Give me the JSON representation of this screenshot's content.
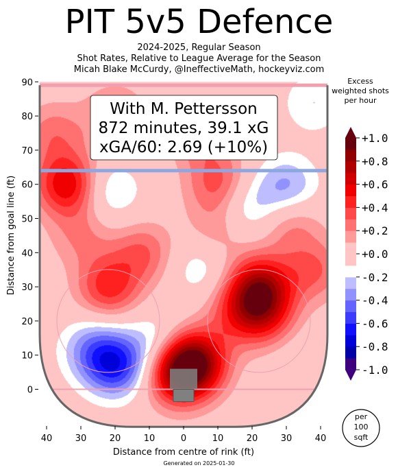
{
  "title": "PIT 5v5 Defence",
  "subtitle_lines": [
    "2024-2025, Regular Season",
    "Shot Rates, Relative to League Average for the Season",
    "Micah Blake McCurdy, @IneffectiveMath, hockeyviz.com"
  ],
  "info_box": {
    "line1": "With M. Pettersson",
    "line2": "872 minutes, 39.1 xG",
    "line3": "xGA/60: 2.69 (+10%)"
  },
  "legend": {
    "title_lines": [
      "Excess",
      "weighted shots",
      "per hour"
    ],
    "ticks": [
      "+1.0",
      "+0.8",
      "+0.6",
      "+0.4",
      "+0.2",
      "+0.0",
      "-0.2",
      "-0.4",
      "-0.6",
      "-0.8",
      "-1.0"
    ],
    "tick_values": [
      1.0,
      0.8,
      0.6,
      0.4,
      0.2,
      0.0,
      -0.2,
      -0.4,
      -0.6,
      -0.8,
      -1.0
    ],
    "levels": [
      -1.0,
      -0.9,
      -0.8,
      -0.7,
      -0.6,
      -0.5,
      -0.4,
      -0.3,
      -0.2,
      -0.1,
      0.1,
      0.2,
      0.3,
      0.4,
      0.5,
      0.6,
      0.7,
      0.8,
      0.9,
      1.0
    ],
    "colors": [
      "#3f007d",
      "#0000a8",
      "#0000d8",
      "#1010ff",
      "#3c3cff",
      "#6464ff",
      "#9292ff",
      "#bdbdff",
      "#ffffff",
      "#ffc4c4",
      "#ff9a9a",
      "#ff7070",
      "#ff4848",
      "#ff2020",
      "#f00000",
      "#d00000",
      "#b00000",
      "#900000",
      "#67000d"
    ]
  },
  "unit_badge": [
    "per",
    "100",
    "sqft"
  ],
  "footer": "Generated on 2025-01-30",
  "colors": {
    "rink_outline": "#666666",
    "blue_line": "#8da8e0",
    "red_line": "#f2a0b0",
    "net": "#808080"
  },
  "chart_data": {
    "type": "heatmap",
    "xlabel": "Distance from centre of rink (ft)",
    "ylabel": "Distance from goal line (ft)",
    "xlim": [
      -42,
      42
    ],
    "ylim": [
      -11,
      90
    ],
    "x_ticks": [
      -40,
      -30,
      -20,
      -10,
      0,
      10,
      20,
      30,
      40
    ],
    "x_tick_labels": [
      "40",
      "30",
      "20",
      "10",
      "0",
      "10",
      "20",
      "30",
      "40"
    ],
    "y_ticks": [
      0,
      10,
      20,
      30,
      40,
      50,
      60,
      70,
      80,
      90
    ],
    "y_tick_labels": [
      "0",
      "10",
      "20",
      "30",
      "40",
      "50",
      "60",
      "70",
      "80",
      "90"
    ],
    "grid": false,
    "colorbar_range": [
      -1.0,
      1.0
    ],
    "hotspots": [
      {
        "x": 3,
        "y": 8,
        "value": 0.85
      },
      {
        "x": -2,
        "y": 4,
        "value": 0.55
      },
      {
        "x": 22,
        "y": 30,
        "value": 0.7
      },
      {
        "x": 23,
        "y": 22,
        "value": 0.45
      },
      {
        "x": -34,
        "y": 60,
        "value": 0.6
      },
      {
        "x": -22,
        "y": 30,
        "value": 0.45
      },
      {
        "x": -12,
        "y": 40,
        "value": 0.3
      },
      {
        "x": -38,
        "y": 75,
        "value": 0.25
      },
      {
        "x": -20,
        "y": 80,
        "value": 0.25
      },
      {
        "x": 5,
        "y": 75,
        "value": 0.3
      },
      {
        "x": 38,
        "y": 35,
        "value": 0.3
      },
      {
        "x": 10,
        "y": 46,
        "value": 0.2
      },
      {
        "x": 31,
        "y": 49,
        "value": 0.25
      },
      {
        "x": 10,
        "y": 60,
        "value": 0.35
      },
      {
        "x": 15,
        "y": 22,
        "value": 0.25
      },
      {
        "x": -30,
        "y": 45,
        "value": 0.2
      },
      {
        "x": -20,
        "y": 7,
        "value": -0.6
      },
      {
        "x": -27,
        "y": 12,
        "value": -0.3
      },
      {
        "x": 30,
        "y": 59,
        "value": -0.35
      },
      {
        "x": 18,
        "y": 53,
        "value": -0.25
      },
      {
        "x": -22,
        "y": 58,
        "value": -0.25
      },
      {
        "x": 38,
        "y": 84,
        "value": -0.2
      },
      {
        "x": -8,
        "y": 14,
        "value": -0.2
      },
      {
        "x": 5,
        "y": 36,
        "value": -0.2
      },
      {
        "x": 36,
        "y": 5,
        "value": -0.1
      }
    ]
  }
}
